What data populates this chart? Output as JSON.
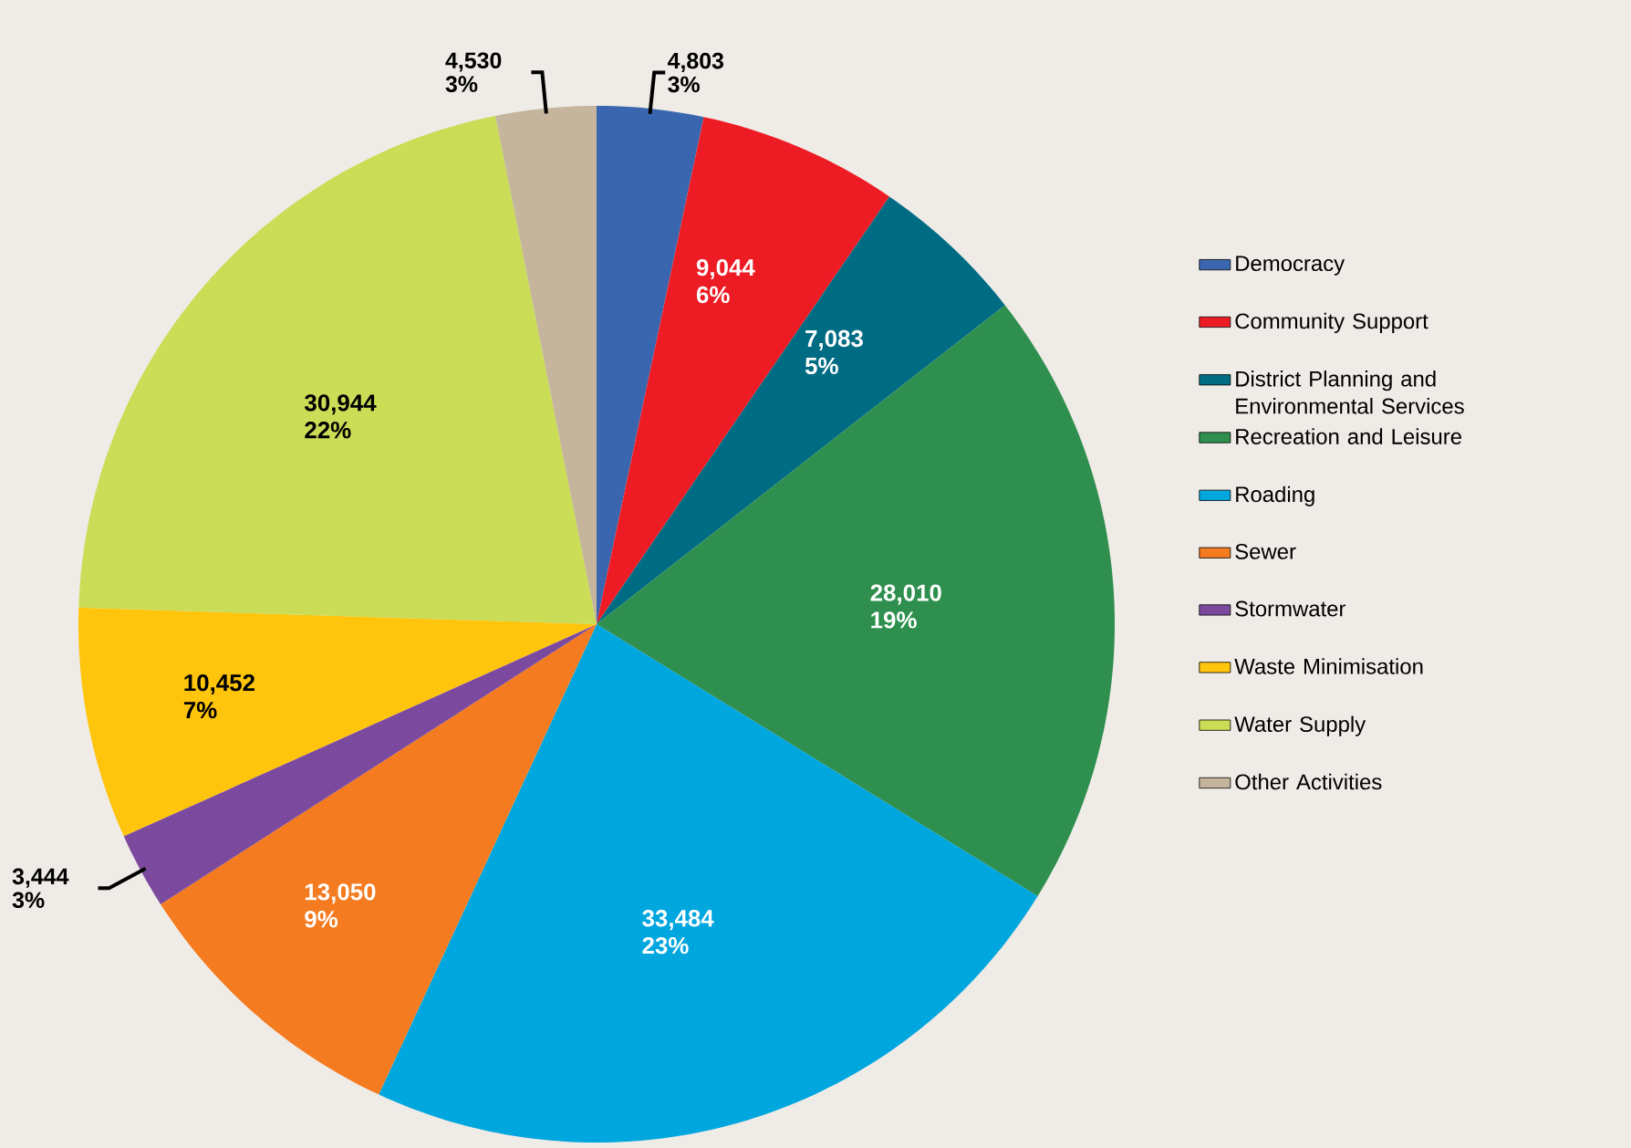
{
  "chart_data": {
    "type": "pie",
    "categories": [
      "Democracy",
      "Community Support",
      "District Planning and Environmental Services",
      "Recreation and Leisure",
      "Roading",
      "Sewer",
      "Stormwater",
      "Waste Minimisation",
      "Water Supply",
      "Other Activities"
    ],
    "values": [
      4803,
      9044,
      7083,
      28010,
      33484,
      13050,
      3444,
      10452,
      30944,
      4530
    ],
    "value_labels": [
      "4,803 3%",
      "9,044 6%",
      "7,083 5%",
      "28,010 19%",
      "33,484 23%",
      "13,050 9%",
      "3,444 3%",
      "10,452 7%",
      "30,944 22%",
      "4,530 3%"
    ],
    "colors": [
      "#3a66b0",
      "#ed1c24",
      "#006c84",
      "#2e8f4e",
      "#00a6de",
      "#f47b20",
      "#7b4a9e",
      "#ffc40c",
      "#cbdc56",
      "#c4b59c"
    ],
    "legend": "right"
  }
}
